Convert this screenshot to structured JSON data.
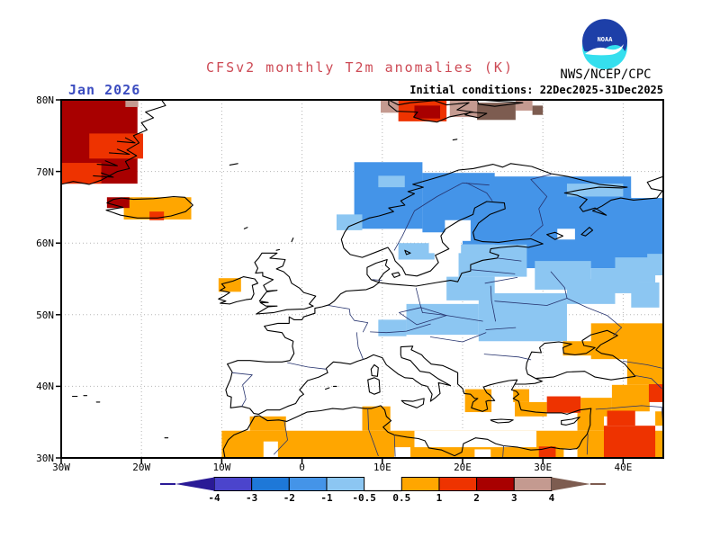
{
  "header": {
    "title": "CFSv2 monthly T2m anomalies (K)",
    "title_color": "#cd4a55",
    "date_label": "Jan 2026",
    "date_color": "#3b4cc0",
    "initial_conditions": "Initial conditions: 22Dec2025-31Dec2025",
    "org": "NWS/NCEP/CPC",
    "logo_text": "NOAA"
  },
  "axes": {
    "lat_tick_labels": [
      "80N",
      "70N",
      "60N",
      "50N",
      "40N",
      "30N"
    ],
    "lat_tick_values": [
      80,
      70,
      60,
      50,
      40,
      30
    ],
    "lon_tick_labels": [
      "30W",
      "20W",
      "10W",
      "0",
      "10E",
      "20E",
      "30E",
      "40E"
    ],
    "lon_tick_values": [
      -30,
      -20,
      -10,
      0,
      10,
      20,
      30,
      40
    ]
  },
  "colorbar": {
    "tick_labels": [
      "-4",
      "-3",
      "-2",
      "-1",
      "-0.5",
      "0.5",
      "1",
      "2",
      "3",
      "4"
    ],
    "segment_colors": [
      "#4b44cc",
      "#1e78d8",
      "#4494e8",
      "#8cc6f2",
      "#ffffff",
      "#ffa600",
      "#ee3300",
      "#a80000",
      "#c49a90"
    ],
    "arrow_left_color": "#2a1a96",
    "arrow_right_color": "#7d5c50"
  },
  "chart_data": {
    "type": "heatmap",
    "title": "CFSv2 monthly T2m anomalies (K)",
    "units": "K",
    "region": "Europe / North Atlantic",
    "lon_range": [
      -30,
      45
    ],
    "lat_range": [
      30,
      80
    ],
    "grid_on": true,
    "legend_position": "bottom",
    "scale_values": [
      -4,
      -3,
      -2,
      -1,
      -0.5,
      0.5,
      1,
      2,
      3,
      4
    ],
    "palette": {
      "mid_blue": "#4494e8",
      "light_blue": "#8cc6f2",
      "orange": "#ffa600",
      "red": "#ee3300",
      "dark_red": "#a80000",
      "tan": "#c49a90",
      "brown": "#7d5c50",
      "white": "#ffffff"
    },
    "paint_order": [
      "mid_blue",
      "light_blue",
      "white_holes",
      "orange",
      "white_notches",
      "red_base",
      "dark_red",
      "red",
      "tan",
      "brown"
    ],
    "cells": {
      "mid_blue": [
        [
          6.5,
          62,
          15,
          71.3
        ],
        [
          15,
          61.5,
          24,
          69.8
        ],
        [
          20,
          59.8,
          31.5,
          66.5
        ],
        [
          23.5,
          64.5,
          41,
          69.3
        ],
        [
          27,
          56.5,
          45,
          66.5
        ],
        [
          24,
          58.3,
          31.5,
          60.3
        ]
      ],
      "light_blue": [
        [
          12,
          57.7,
          16.5,
          60
        ],
        [
          19.5,
          55.3,
          28,
          59.8
        ],
        [
          18,
          52,
          24,
          55.3
        ],
        [
          13,
          47.2,
          22,
          51.5
        ],
        [
          9.5,
          47,
          13,
          49.3
        ],
        [
          22,
          46.3,
          33,
          53
        ],
        [
          29,
          53.5,
          36,
          57.5
        ],
        [
          33,
          51.5,
          39,
          55
        ],
        [
          36,
          53,
          42,
          56.5
        ],
        [
          39,
          54.5,
          44,
          58
        ],
        [
          41,
          51,
          44.5,
          54.5
        ],
        [
          43,
          55.5,
          45,
          58.5
        ],
        [
          33,
          66.5,
          40,
          68.3
        ],
        [
          9.5,
          67.8,
          12.8,
          69.4
        ],
        [
          4.3,
          61.8,
          7.5,
          64
        ]
      ],
      "white_holes": [
        [
          31.8,
          60.5,
          34,
          62
        ],
        [
          41,
          66.3,
          45,
          69.3
        ],
        [
          15.8,
          58.6,
          19.8,
          61.4
        ],
        [
          17.8,
          60.3,
          21,
          63.2
        ]
      ],
      "orange": [
        [
          -10,
          30,
          45,
          33.8
        ],
        [
          -6.5,
          33.8,
          -2,
          35.8
        ],
        [
          7.5,
          33.8,
          11,
          37.2
        ],
        [
          34.3,
          33.8,
          37.6,
          36.3
        ],
        [
          -22.2,
          63.3,
          -13.8,
          66.4
        ],
        [
          -10.4,
          53.2,
          -7.6,
          55.1
        ],
        [
          20.3,
          36.4,
          23.6,
          39.6
        ],
        [
          26.5,
          35.8,
          30.5,
          37.8
        ],
        [
          26.3,
          37.8,
          28.3,
          39.6
        ],
        [
          34.7,
          35.8,
          38.6,
          38.4
        ],
        [
          38.6,
          36.5,
          43.3,
          40.2
        ],
        [
          40.5,
          40.2,
          45,
          44.3
        ],
        [
          32.5,
          44.3,
          36.5,
          46.3
        ],
        [
          36,
          43.8,
          45,
          48.8
        ],
        [
          44,
          34.5,
          45,
          36.5
        ]
      ],
      "white_notches": [
        [
          -4.8,
          30,
          -3,
          32.3
        ],
        [
          11.5,
          30,
          13.5,
          31.5
        ],
        [
          14,
          31.5,
          29.2,
          33.8
        ],
        [
          32.6,
          30,
          34.3,
          31.3
        ],
        [
          21.5,
          30,
          23.5,
          31.2
        ]
      ],
      "red_base": [
        [
          12,
          77,
          18,
          79.9
        ]
      ],
      "dark_red": [
        [
          -30,
          68.3,
          -20.5,
          80
        ],
        [
          -24.3,
          64.9,
          -21.5,
          66.4
        ],
        [
          14,
          77.4,
          17.2,
          79.2
        ]
      ],
      "red": [
        [
          -26.5,
          71.8,
          -19.8,
          75.3
        ],
        [
          -30,
          68.3,
          -25,
          71.2
        ],
        [
          -19,
          63.2,
          -17.2,
          64.4
        ],
        [
          30.5,
          36.3,
          34.7,
          38.6
        ],
        [
          37.6,
          30,
          44,
          34.5
        ],
        [
          38,
          34.5,
          41.5,
          36.6
        ],
        [
          29.5,
          30,
          31.6,
          31.6
        ],
        [
          43.2,
          37.8,
          45,
          40.3
        ]
      ],
      "tan": [
        [
          -22,
          79,
          -20.4,
          80
        ],
        [
          9.8,
          78.2,
          12,
          80
        ],
        [
          18.4,
          77.6,
          21.8,
          80
        ],
        [
          26.6,
          78.5,
          28.7,
          80
        ]
      ],
      "brown": [
        [
          21.8,
          77.2,
          26.6,
          79.6
        ],
        [
          28.7,
          77.9,
          30,
          79.2
        ]
      ]
    },
    "summary": "Cold anomalies (-2 to -0.5 K) over Fennoscandia, the Baltics, NW Russia and east-central Europe; warm anomalies (+0.5 to +4 K) over Greenland, Iceland, Svalbard, North Africa, Turkey, the Caucasus and the Middle East."
  }
}
